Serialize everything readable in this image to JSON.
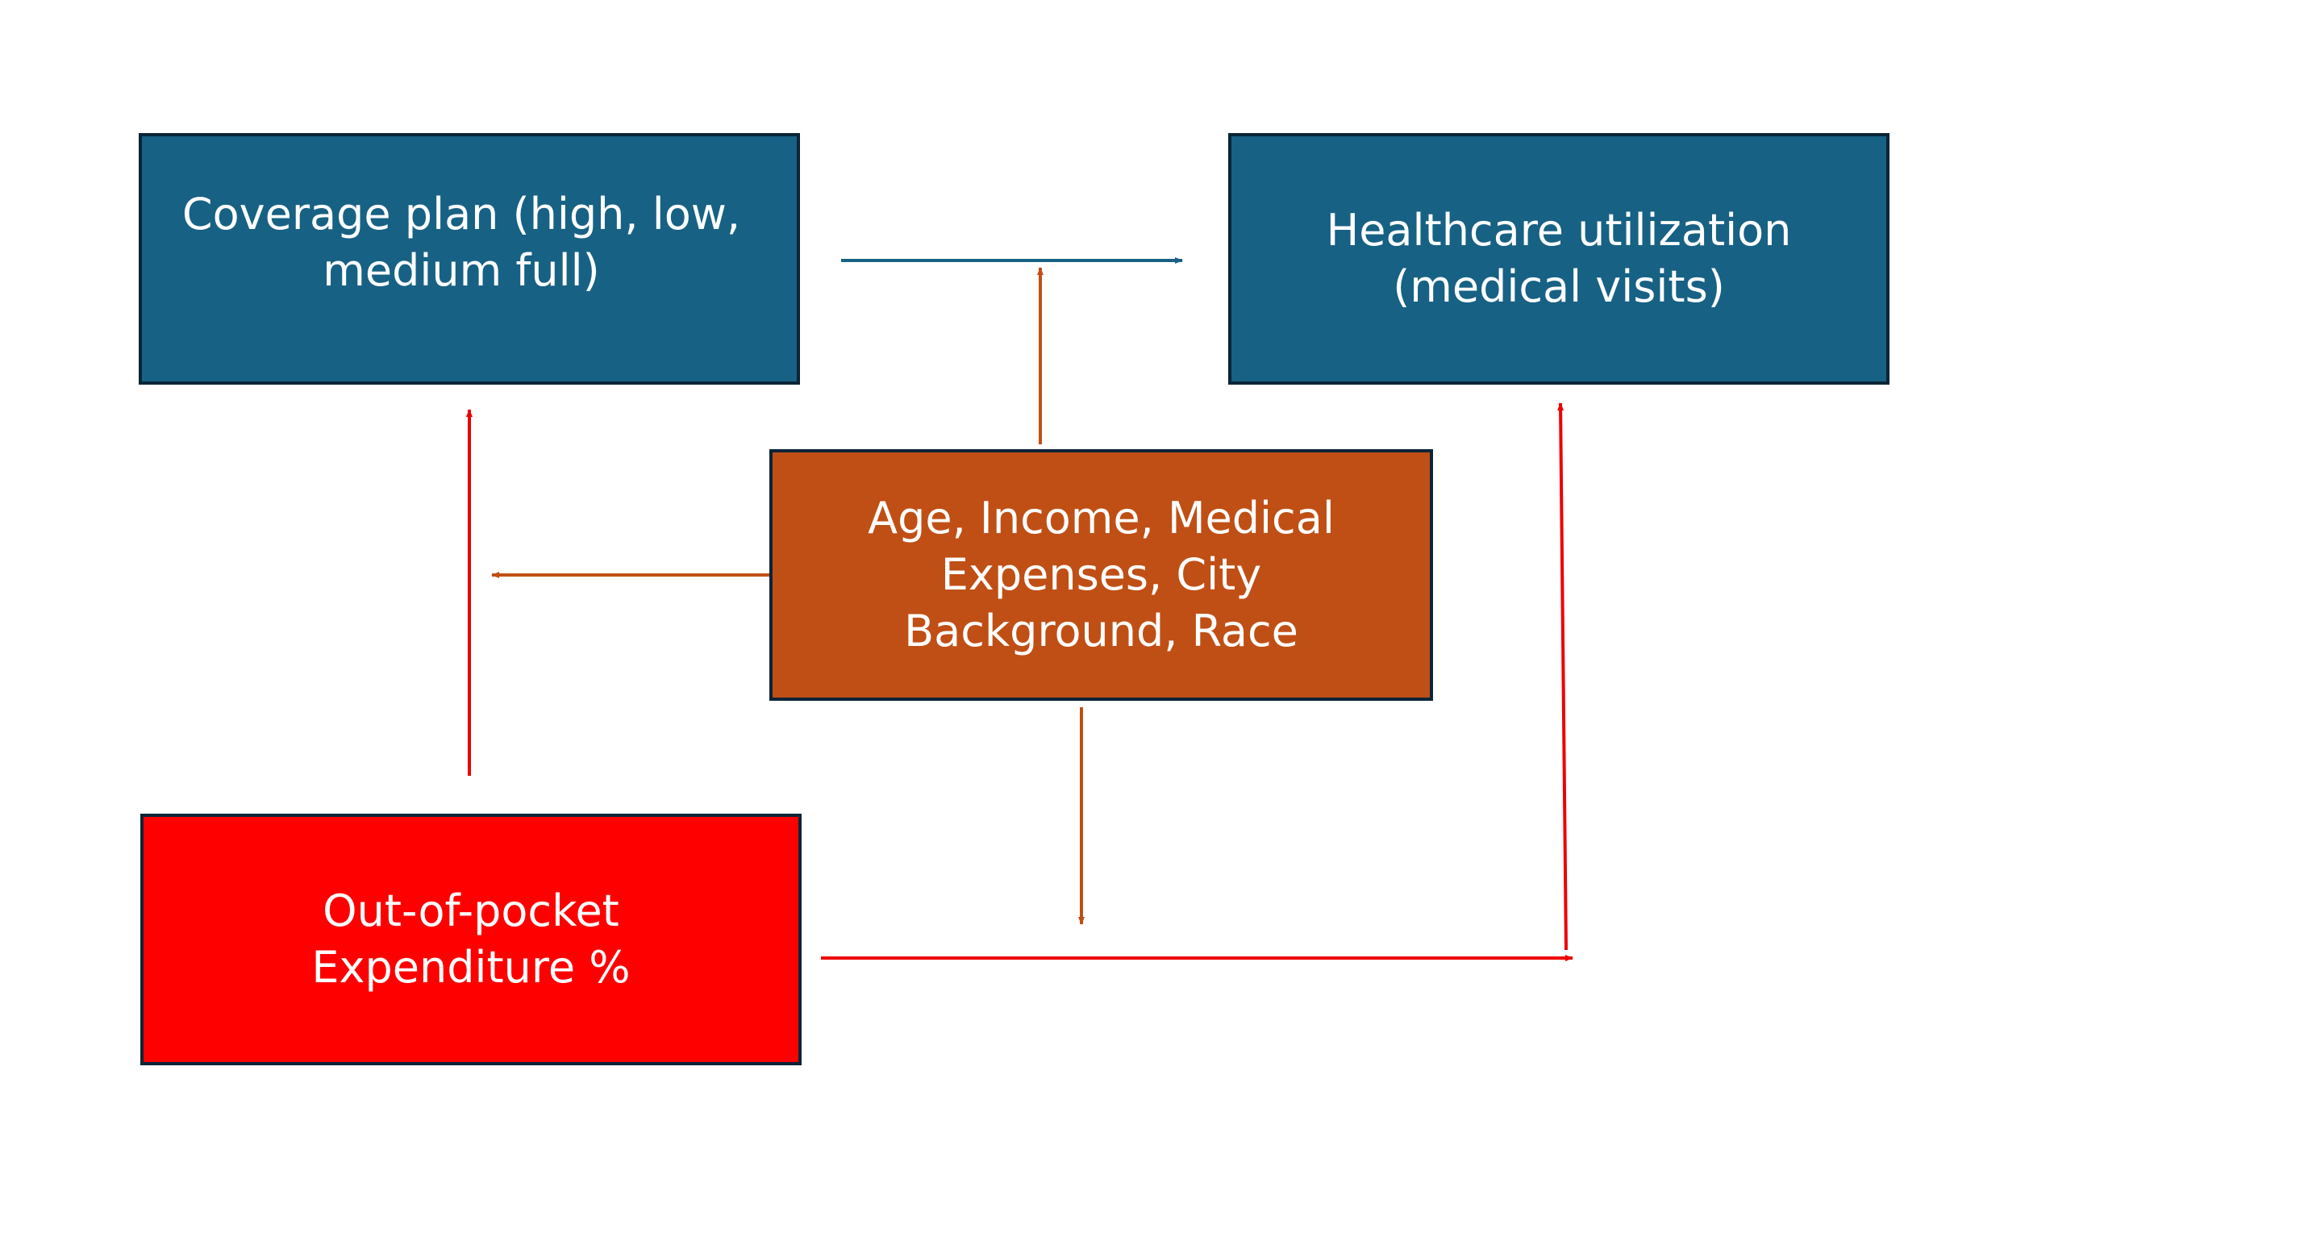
{
  "colors": {
    "background": "#ffffff",
    "blue_box": "#176184",
    "orange_box": "#c04f15",
    "red_box": "#ff0000",
    "box_border": "#0b2537",
    "blue_arrow": "#176184",
    "orange_arrow": "#c04f15",
    "red_arrow": "#ee0000"
  },
  "nodes": {
    "coverage_plan": {
      "label": "Coverage plan (high, low,\nmedium full)"
    },
    "healthcare_utilization": {
      "label": "Healthcare utilization\n(medical visits)"
    },
    "covariates": {
      "label": "Age, Income, Medical\nExpenses, City\nBackground, Race"
    },
    "out_of_pocket": {
      "label": "Out-of-pocket\nExpenditure %"
    }
  },
  "edges": [
    {
      "from": "coverage_plan",
      "to": "healthcare_utilization",
      "color": "blue_arrow"
    },
    {
      "from": "covariates",
      "to": "coverage_plan",
      "color": "orange_arrow"
    },
    {
      "from": "covariates",
      "to": "coverage_to_utilization_edge",
      "color": "orange_arrow"
    },
    {
      "from": "covariates",
      "to": "out_of_pocket_to_utilization_edge",
      "color": "orange_arrow"
    },
    {
      "from": "out_of_pocket",
      "to": "coverage_plan",
      "color": "red_arrow"
    },
    {
      "from": "out_of_pocket",
      "to": "healthcare_utilization",
      "color": "red_arrow"
    }
  ]
}
